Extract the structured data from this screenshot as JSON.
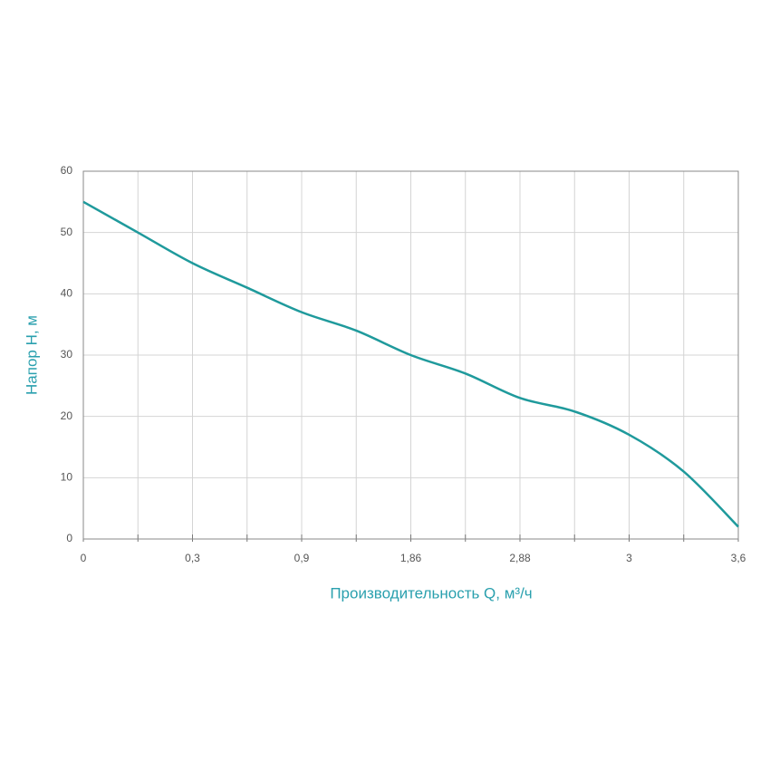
{
  "chart_data": {
    "type": "line",
    "x_label": "Производительность Q, м³/ч",
    "y_label": "Напор Н, м",
    "categories": [
      "0",
      null,
      "0,3",
      null,
      "0,9",
      null,
      "1,86",
      null,
      "2,88",
      null,
      "3",
      null,
      "3,6"
    ],
    "series": [
      {
        "name": null,
        "color": "#1f9a9c",
        "values": [
          55,
          50,
          45,
          41,
          37,
          34,
          30,
          27,
          23,
          20.8,
          17,
          11,
          2
        ]
      }
    ],
    "ylim": [
      0,
      60
    ],
    "yticks": [
      0,
      10,
      20,
      30,
      40,
      50,
      60
    ],
    "grid": true
  }
}
